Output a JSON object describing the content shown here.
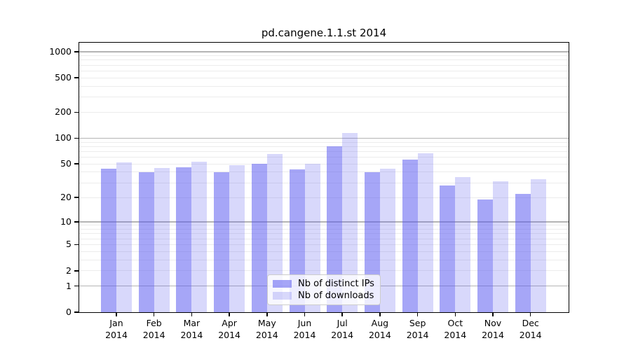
{
  "chart_data": {
    "type": "bar",
    "title": "pd.cangene.1.1.st 2014",
    "categories": [
      "Jan",
      "Feb",
      "Mar",
      "Apr",
      "May",
      "Jun",
      "Jul",
      "Aug",
      "Sep",
      "Oct",
      "Nov",
      "Dec"
    ],
    "year": "2014",
    "series": [
      {
        "name": "Nb of distinct IPs",
        "color": "#5a5af0",
        "alpha": 0.54,
        "values": [
          44,
          40,
          46,
          40,
          50,
          43,
          80,
          40,
          56,
          28,
          19,
          22
        ]
      },
      {
        "name": "Nb of downloads",
        "color": "#5a5af0",
        "alpha": 0.24,
        "values": [
          52,
          45,
          53,
          48,
          65,
          50,
          115,
          44,
          67,
          35,
          31,
          33
        ]
      }
    ],
    "yscale": "log1p",
    "ylim": [
      0,
      1270
    ],
    "ytick_values": [
      0,
      1,
      2,
      5,
      10,
      20,
      50,
      100,
      200,
      500,
      1000
    ],
    "ytick_labels": [
      "0",
      "1",
      "2",
      "5",
      "10",
      "20",
      "50",
      "100",
      "200",
      "500",
      "1000"
    ],
    "grid_major": [
      1,
      10,
      100,
      1000
    ],
    "grid_minor": [
      2,
      3,
      4,
      5,
      6,
      7,
      8,
      9,
      20,
      30,
      40,
      50,
      60,
      70,
      80,
      90,
      200,
      300,
      400,
      500,
      600,
      700,
      800,
      900
    ],
    "grid": "on",
    "legend_position": "lower center",
    "xlabel": "",
    "ylabel": "",
    "colors": {
      "bar_base": "#5a5af0",
      "major_grid": "#b4b4b4",
      "minor_grid": "#ececec",
      "spine": "#000000",
      "legend_border": "#cccccc"
    }
  }
}
